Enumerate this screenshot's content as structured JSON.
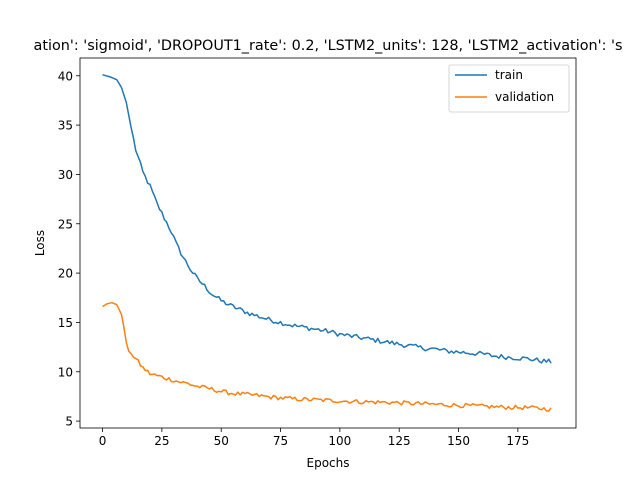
{
  "chart_data": {
    "type": "line",
    "title": "ation': 'sigmoid', 'DROPOUT1_rate': 0.2, 'LSTM2_units': 128, 'LSTM2_activation': 's",
    "xlabel": "Epochs",
    "ylabel": "Loss",
    "xlim": [
      -9.5,
      199.5
    ],
    "ylim": [
      4.3,
      41.8
    ],
    "xticks": [
      0,
      25,
      50,
      75,
      100,
      125,
      150,
      175
    ],
    "yticks": [
      5,
      10,
      15,
      20,
      25,
      30,
      35,
      40
    ],
    "grid": false,
    "legend_position": "top-right",
    "series": [
      {
        "name": "train",
        "color": "#1f77b4",
        "anchors": [
          [
            0,
            40.1
          ],
          [
            3,
            39.9
          ],
          [
            6,
            39.6
          ],
          [
            8,
            38.8
          ],
          [
            10,
            37.3
          ],
          [
            12,
            34.8
          ],
          [
            14,
            32.5
          ],
          [
            17,
            30.2
          ],
          [
            20,
            28.8
          ],
          [
            23,
            27.0
          ],
          [
            26,
            25.6
          ],
          [
            29,
            24.2
          ],
          [
            31,
            23.0
          ],
          [
            34,
            21.6
          ],
          [
            37,
            20.4
          ],
          [
            40,
            19.4
          ],
          [
            43,
            18.7
          ],
          [
            46,
            17.9
          ],
          [
            50,
            17.2
          ],
          [
            54,
            16.7
          ],
          [
            58,
            16.3
          ],
          [
            62,
            15.9
          ],
          [
            66,
            15.6
          ],
          [
            70,
            15.3
          ],
          [
            75,
            15.0
          ],
          [
            80,
            14.7
          ],
          [
            85,
            14.5
          ],
          [
            90,
            14.3
          ],
          [
            95,
            14.1
          ],
          [
            100,
            13.8
          ],
          [
            105,
            13.6
          ],
          [
            110,
            13.4
          ],
          [
            115,
            13.2
          ],
          [
            120,
            13.0
          ],
          [
            125,
            12.8
          ],
          [
            130,
            12.6
          ],
          [
            135,
            12.4
          ],
          [
            140,
            12.3
          ],
          [
            145,
            12.1
          ],
          [
            150,
            12.0
          ],
          [
            155,
            11.9
          ],
          [
            160,
            11.8
          ],
          [
            165,
            11.6
          ],
          [
            170,
            11.5
          ],
          [
            175,
            11.4
          ],
          [
            180,
            11.3
          ],
          [
            185,
            11.1
          ],
          [
            189,
            11.0
          ]
        ],
        "noise_amp": 0.25
      },
      {
        "name": "validation",
        "color": "#ff7f0e",
        "anchors": [
          [
            0,
            16.6
          ],
          [
            2,
            16.9
          ],
          [
            4,
            17.0
          ],
          [
            6,
            16.8
          ],
          [
            8,
            15.8
          ],
          [
            9,
            14.5
          ],
          [
            10,
            13.0
          ],
          [
            11,
            12.1
          ],
          [
            13,
            11.6
          ],
          [
            15,
            11.0
          ],
          [
            17,
            10.4
          ],
          [
            20,
            9.8
          ],
          [
            23,
            9.6
          ],
          [
            26,
            9.4
          ],
          [
            29,
            9.2
          ],
          [
            32,
            9.0
          ],
          [
            36,
            8.8
          ],
          [
            40,
            8.5
          ],
          [
            45,
            8.3
          ],
          [
            50,
            8.0
          ],
          [
            55,
            7.8
          ],
          [
            60,
            7.7
          ],
          [
            65,
            7.6
          ],
          [
            70,
            7.45
          ],
          [
            75,
            7.35
          ],
          [
            80,
            7.25
          ],
          [
            90,
            7.15
          ],
          [
            100,
            7.05
          ],
          [
            110,
            6.95
          ],
          [
            120,
            6.9
          ],
          [
            130,
            6.8
          ],
          [
            140,
            6.7
          ],
          [
            150,
            6.6
          ],
          [
            160,
            6.5
          ],
          [
            170,
            6.4
          ],
          [
            180,
            6.35
          ],
          [
            189,
            6.2
          ]
        ],
        "noise_amp": 0.22
      }
    ]
  }
}
